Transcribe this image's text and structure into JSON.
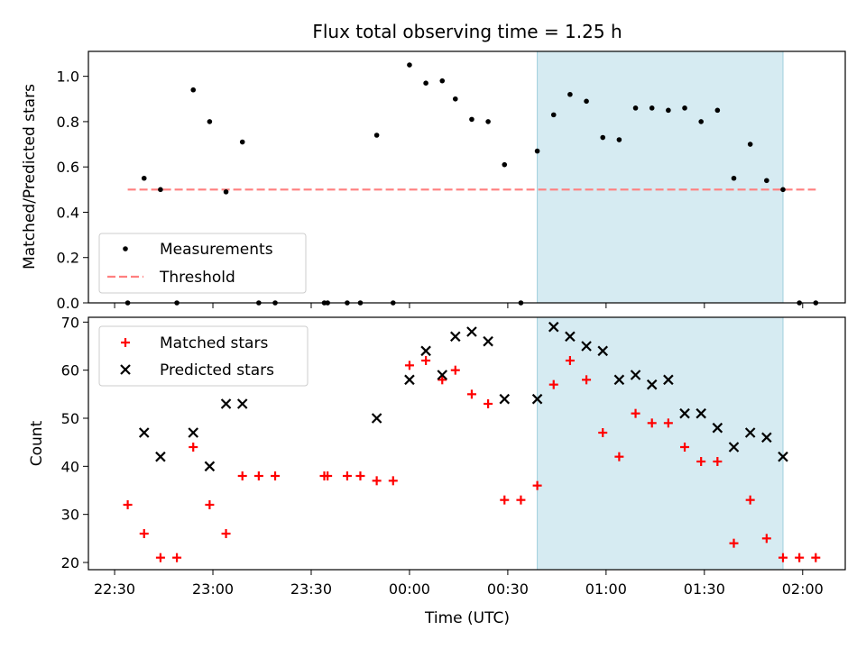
{
  "title": "Flux total observing time = 1.25 h",
  "colors": {
    "measurement": "#000000",
    "threshold": "#ff7f7f",
    "matched": "#ff0000",
    "predicted": "#000000",
    "span": "#add8e6"
  },
  "chart_data": [
    {
      "type": "scatter",
      "ylabel": "Matched/Predicted stars",
      "xlim": [
        "22:22",
        "02:13"
      ],
      "ylim": [
        0,
        1.11
      ],
      "yticks": [
        "0.0",
        "0.2",
        "0.4",
        "0.6",
        "0.8",
        "1.0"
      ],
      "highlight_span": [
        "00:39",
        "01:54"
      ],
      "legend": {
        "placement": "lower-left",
        "entries": [
          "Measurements",
          "Threshold"
        ]
      },
      "threshold": {
        "value": 0.5,
        "x_range": [
          "22:34",
          "02:04"
        ]
      },
      "measurements": [
        {
          "t": "22:34",
          "v": 0.0
        },
        {
          "t": "22:39",
          "v": 0.55
        },
        {
          "t": "22:44",
          "v": 0.5
        },
        {
          "t": "22:49",
          "v": 0.0
        },
        {
          "t": "22:54",
          "v": 0.94
        },
        {
          "t": "22:59",
          "v": 0.8
        },
        {
          "t": "23:04",
          "v": 0.49
        },
        {
          "t": "23:09",
          "v": 0.71
        },
        {
          "t": "23:14",
          "v": 0.0
        },
        {
          "t": "23:19",
          "v": 0.0
        },
        {
          "t": "23:34",
          "v": 0.0
        },
        {
          "t": "23:35",
          "v": 0.0
        },
        {
          "t": "23:41",
          "v": 0.0
        },
        {
          "t": "23:45",
          "v": 0.0
        },
        {
          "t": "23:50",
          "v": 0.74
        },
        {
          "t": "23:55",
          "v": 0.0
        },
        {
          "t": "00:00",
          "v": 1.05
        },
        {
          "t": "00:05",
          "v": 0.97
        },
        {
          "t": "00:10",
          "v": 0.98
        },
        {
          "t": "00:14",
          "v": 0.9
        },
        {
          "t": "00:19",
          "v": 0.81
        },
        {
          "t": "00:24",
          "v": 0.8
        },
        {
          "t": "00:29",
          "v": 0.61
        },
        {
          "t": "00:34",
          "v": 0.0
        },
        {
          "t": "00:39",
          "v": 0.67
        },
        {
          "t": "00:44",
          "v": 0.83
        },
        {
          "t": "00:49",
          "v": 0.92
        },
        {
          "t": "00:54",
          "v": 0.89
        },
        {
          "t": "00:59",
          "v": 0.73
        },
        {
          "t": "01:04",
          "v": 0.72
        },
        {
          "t": "01:09",
          "v": 0.86
        },
        {
          "t": "01:14",
          "v": 0.86
        },
        {
          "t": "01:19",
          "v": 0.85
        },
        {
          "t": "01:24",
          "v": 0.86
        },
        {
          "t": "01:29",
          "v": 0.8
        },
        {
          "t": "01:34",
          "v": 0.85
        },
        {
          "t": "01:39",
          "v": 0.55
        },
        {
          "t": "01:44",
          "v": 0.7
        },
        {
          "t": "01:49",
          "v": 0.54
        },
        {
          "t": "01:54",
          "v": 0.5
        },
        {
          "t": "01:59",
          "v": 0.0
        },
        {
          "t": "02:04",
          "v": 0.0
        }
      ]
    },
    {
      "type": "scatter",
      "xlabel": "Time (UTC)",
      "ylabel": "Count",
      "xlim": [
        "22:22",
        "02:13"
      ],
      "ylim": [
        18.5,
        71
      ],
      "yticks": [
        "20",
        "30",
        "40",
        "50",
        "60",
        "70"
      ],
      "xticks": [
        "22:30",
        "23:00",
        "23:30",
        "00:00",
        "00:30",
        "01:00",
        "01:30",
        "02:00"
      ],
      "highlight_span": [
        "00:39",
        "01:54"
      ],
      "legend": {
        "placement": "upper-left",
        "entries": [
          "Matched stars",
          "Predicted stars"
        ]
      },
      "matched": [
        {
          "t": "22:34",
          "v": 32
        },
        {
          "t": "22:39",
          "v": 26
        },
        {
          "t": "22:44",
          "v": 21
        },
        {
          "t": "22:49",
          "v": 21
        },
        {
          "t": "22:54",
          "v": 44
        },
        {
          "t": "22:59",
          "v": 32
        },
        {
          "t": "23:04",
          "v": 26
        },
        {
          "t": "23:09",
          "v": 38
        },
        {
          "t": "23:14",
          "v": 38
        },
        {
          "t": "23:19",
          "v": 38
        },
        {
          "t": "23:34",
          "v": 38
        },
        {
          "t": "23:35",
          "v": 38
        },
        {
          "t": "23:41",
          "v": 38
        },
        {
          "t": "23:45",
          "v": 38
        },
        {
          "t": "23:50",
          "v": 37
        },
        {
          "t": "23:55",
          "v": 37
        },
        {
          "t": "00:00",
          "v": 61
        },
        {
          "t": "00:05",
          "v": 62
        },
        {
          "t": "00:10",
          "v": 58
        },
        {
          "t": "00:14",
          "v": 60
        },
        {
          "t": "00:19",
          "v": 55
        },
        {
          "t": "00:24",
          "v": 53
        },
        {
          "t": "00:29",
          "v": 33
        },
        {
          "t": "00:34",
          "v": 33
        },
        {
          "t": "00:39",
          "v": 36
        },
        {
          "t": "00:44",
          "v": 57
        },
        {
          "t": "00:49",
          "v": 62
        },
        {
          "t": "00:54",
          "v": 58
        },
        {
          "t": "00:59",
          "v": 47
        },
        {
          "t": "01:04",
          "v": 42
        },
        {
          "t": "01:09",
          "v": 51
        },
        {
          "t": "01:14",
          "v": 49
        },
        {
          "t": "01:19",
          "v": 49
        },
        {
          "t": "01:24",
          "v": 44
        },
        {
          "t": "01:29",
          "v": 41
        },
        {
          "t": "01:34",
          "v": 41
        },
        {
          "t": "01:39",
          "v": 24
        },
        {
          "t": "01:44",
          "v": 33
        },
        {
          "t": "01:49",
          "v": 25
        },
        {
          "t": "01:54",
          "v": 21
        },
        {
          "t": "01:59",
          "v": 21
        },
        {
          "t": "02:04",
          "v": 21
        }
      ],
      "predicted": [
        {
          "t": "22:39",
          "v": 47
        },
        {
          "t": "22:44",
          "v": 42
        },
        {
          "t": "22:54",
          "v": 47
        },
        {
          "t": "22:59",
          "v": 40
        },
        {
          "t": "23:04",
          "v": 53
        },
        {
          "t": "23:09",
          "v": 53
        },
        {
          "t": "23:50",
          "v": 50
        },
        {
          "t": "00:00",
          "v": 58
        },
        {
          "t": "00:05",
          "v": 64
        },
        {
          "t": "00:10",
          "v": 59
        },
        {
          "t": "00:14",
          "v": 67
        },
        {
          "t": "00:19",
          "v": 68
        },
        {
          "t": "00:24",
          "v": 66
        },
        {
          "t": "00:29",
          "v": 54
        },
        {
          "t": "00:39",
          "v": 54
        },
        {
          "t": "00:44",
          "v": 69
        },
        {
          "t": "00:49",
          "v": 67
        },
        {
          "t": "00:54",
          "v": 65
        },
        {
          "t": "00:59",
          "v": 64
        },
        {
          "t": "01:04",
          "v": 58
        },
        {
          "t": "01:09",
          "v": 59
        },
        {
          "t": "01:14",
          "v": 57
        },
        {
          "t": "01:19",
          "v": 58
        },
        {
          "t": "01:24",
          "v": 51
        },
        {
          "t": "01:29",
          "v": 51
        },
        {
          "t": "01:34",
          "v": 48
        },
        {
          "t": "01:39",
          "v": 44
        },
        {
          "t": "01:44",
          "v": 47
        },
        {
          "t": "01:49",
          "v": 46
        },
        {
          "t": "01:54",
          "v": 42
        }
      ]
    }
  ]
}
